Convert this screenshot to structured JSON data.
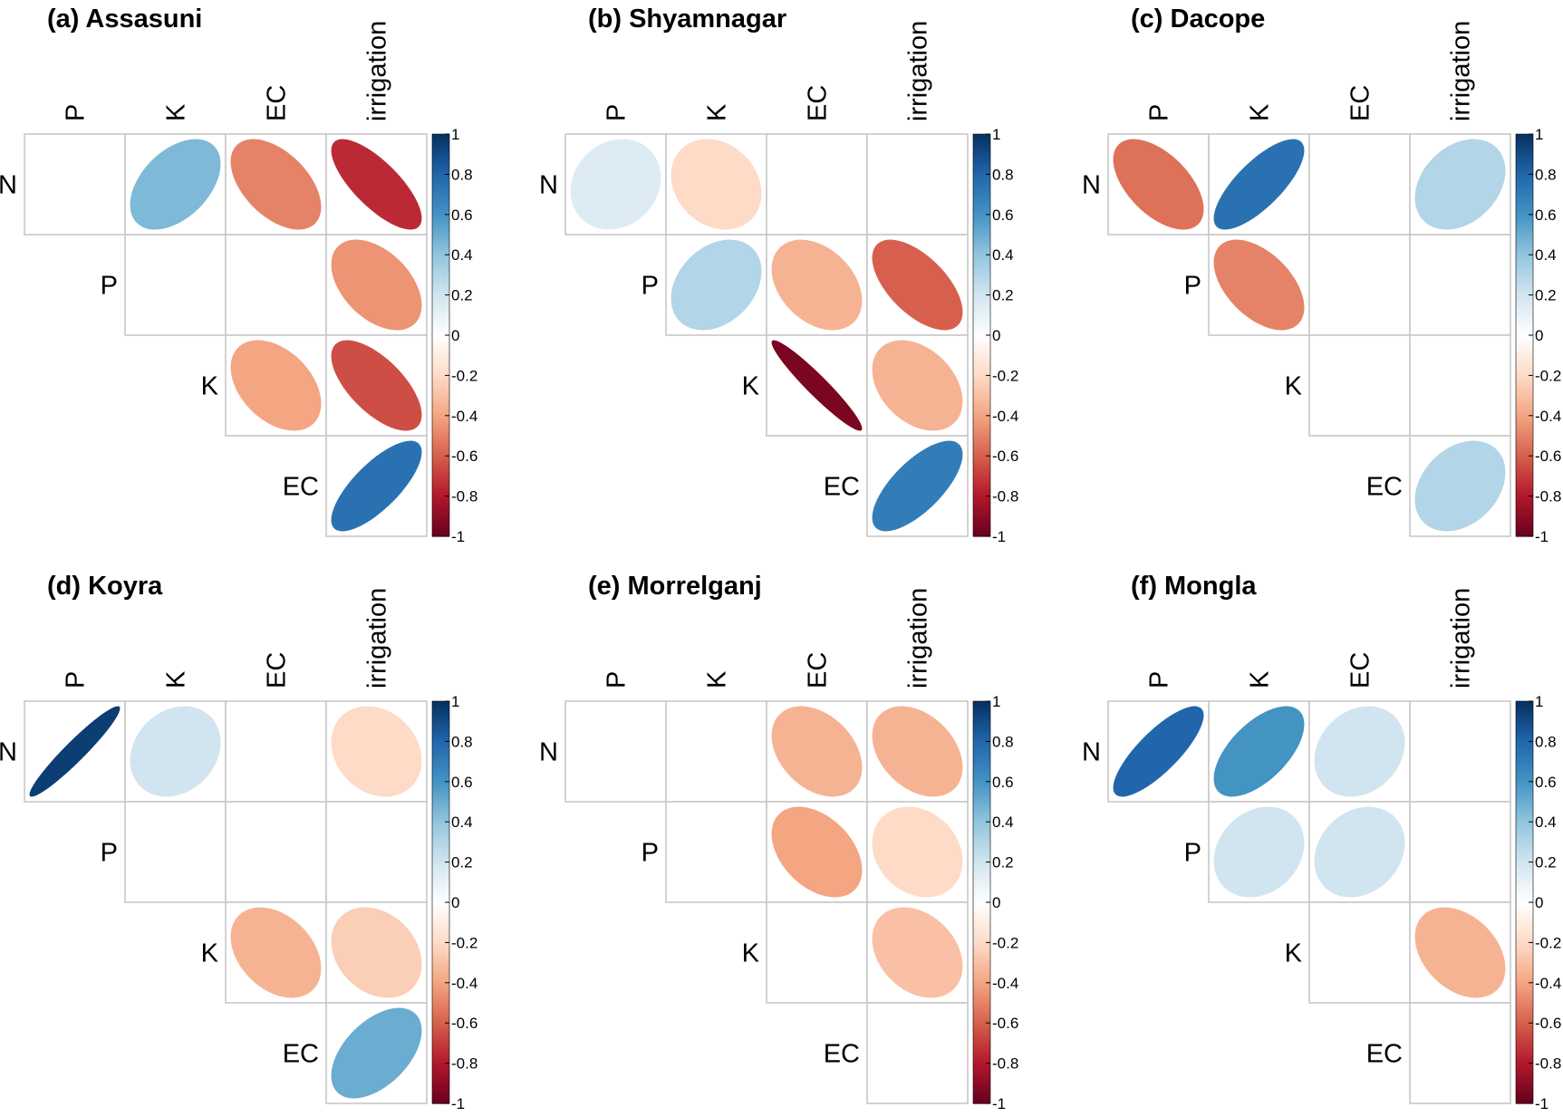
{
  "chart_data": [
    {
      "type": "heatmap",
      "title": "(a) Assasuni",
      "rows": [
        "N",
        "P",
        "K",
        "EC"
      ],
      "columns": [
        "P",
        "K",
        "EC",
        "irrigation"
      ],
      "cells": [
        {
          "row": "N",
          "col": "P",
          "value": null
        },
        {
          "row": "N",
          "col": "K",
          "value": 0.45
        },
        {
          "row": "N",
          "col": "EC",
          "value": -0.5
        },
        {
          "row": "N",
          "col": "irrigation",
          "value": -0.75
        },
        {
          "row": "P",
          "col": "K",
          "value": null
        },
        {
          "row": "P",
          "col": "EC",
          "value": null
        },
        {
          "row": "P",
          "col": "irrigation",
          "value": -0.45
        },
        {
          "row": "K",
          "col": "EC",
          "value": -0.4
        },
        {
          "row": "K",
          "col": "irrigation",
          "value": -0.65
        },
        {
          "row": "EC",
          "col": "irrigation",
          "value": 0.75
        }
      ],
      "colorbar_ticks": [
        "1",
        "0.8",
        "0.6",
        "0.4",
        "0.2",
        "0",
        "-0.2",
        "-0.4",
        "-0.6",
        "-0.8",
        "-1"
      ],
      "colorbar_range": [
        -1,
        1
      ]
    },
    {
      "type": "heatmap",
      "title": "(b) Shyamnagar",
      "rows": [
        "N",
        "P",
        "K",
        "EC"
      ],
      "columns": [
        "P",
        "K",
        "EC",
        "irrigation"
      ],
      "cells": [
        {
          "row": "N",
          "col": "P",
          "value": 0.15
        },
        {
          "row": "N",
          "col": "K",
          "value": -0.2
        },
        {
          "row": "N",
          "col": "EC",
          "value": null
        },
        {
          "row": "N",
          "col": "irrigation",
          "value": null
        },
        {
          "row": "P",
          "col": "K",
          "value": 0.3
        },
        {
          "row": "P",
          "col": "EC",
          "value": -0.35
        },
        {
          "row": "P",
          "col": "irrigation",
          "value": -0.6
        },
        {
          "row": "K",
          "col": "EC",
          "value": -0.95
        },
        {
          "row": "K",
          "col": "irrigation",
          "value": -0.35
        },
        {
          "row": "EC",
          "col": "irrigation",
          "value": 0.7
        }
      ],
      "colorbar_ticks": [
        "1",
        "0.8",
        "0.6",
        "0.4",
        "0.2",
        "0",
        "-0.2",
        "-0.4",
        "-0.6",
        "-0.8",
        "-1"
      ],
      "colorbar_range": [
        -1,
        1
      ]
    },
    {
      "type": "heatmap",
      "title": "(c) Dacope",
      "rows": [
        "N",
        "P",
        "K",
        "EC"
      ],
      "columns": [
        "P",
        "K",
        "EC",
        "irrigation"
      ],
      "cells": [
        {
          "row": "N",
          "col": "P",
          "value": -0.55
        },
        {
          "row": "N",
          "col": "K",
          "value": 0.75
        },
        {
          "row": "N",
          "col": "EC",
          "value": null
        },
        {
          "row": "N",
          "col": "irrigation",
          "value": 0.3
        },
        {
          "row": "P",
          "col": "K",
          "value": -0.5
        },
        {
          "row": "P",
          "col": "EC",
          "value": null
        },
        {
          "row": "P",
          "col": "irrigation",
          "value": null
        },
        {
          "row": "K",
          "col": "EC",
          "value": null
        },
        {
          "row": "K",
          "col": "irrigation",
          "value": null
        },
        {
          "row": "EC",
          "col": "irrigation",
          "value": 0.3
        }
      ],
      "colorbar_ticks": [
        "1",
        "0.8",
        "0.6",
        "0.4",
        "0.2",
        "0",
        "-0.2",
        "-0.4",
        "-0.6",
        "-0.8",
        "-1"
      ],
      "colorbar_range": [
        -1,
        1
      ]
    },
    {
      "type": "heatmap",
      "title": "(d) Koyra",
      "rows": [
        "N",
        "P",
        "K",
        "EC"
      ],
      "columns": [
        "P",
        "K",
        "EC",
        "irrigation"
      ],
      "cells": [
        {
          "row": "N",
          "col": "P",
          "value": 0.95
        },
        {
          "row": "N",
          "col": "K",
          "value": 0.2
        },
        {
          "row": "N",
          "col": "EC",
          "value": null
        },
        {
          "row": "N",
          "col": "irrigation",
          "value": -0.2
        },
        {
          "row": "P",
          "col": "K",
          "value": null
        },
        {
          "row": "P",
          "col": "EC",
          "value": null
        },
        {
          "row": "P",
          "col": "irrigation",
          "value": null
        },
        {
          "row": "K",
          "col": "EC",
          "value": -0.35
        },
        {
          "row": "K",
          "col": "irrigation",
          "value": -0.25
        },
        {
          "row": "EC",
          "col": "irrigation",
          "value": 0.5
        }
      ],
      "colorbar_ticks": [
        "1",
        "0.8",
        "0.6",
        "0.4",
        "0.2",
        "0",
        "-0.2",
        "-0.4",
        "-0.6",
        "-0.8",
        "-1"
      ],
      "colorbar_range": [
        -1,
        1
      ]
    },
    {
      "type": "heatmap",
      "title": "(e) Morrelganj",
      "rows": [
        "N",
        "P",
        "K",
        "EC"
      ],
      "columns": [
        "P",
        "K",
        "EC",
        "irrigation"
      ],
      "cells": [
        {
          "row": "N",
          "col": "P",
          "value": null
        },
        {
          "row": "N",
          "col": "K",
          "value": null
        },
        {
          "row": "N",
          "col": "EC",
          "value": -0.35
        },
        {
          "row": "N",
          "col": "irrigation",
          "value": -0.35
        },
        {
          "row": "P",
          "col": "K",
          "value": null
        },
        {
          "row": "P",
          "col": "EC",
          "value": -0.4
        },
        {
          "row": "P",
          "col": "irrigation",
          "value": -0.2
        },
        {
          "row": "K",
          "col": "EC",
          "value": null
        },
        {
          "row": "K",
          "col": "irrigation",
          "value": -0.3
        },
        {
          "row": "EC",
          "col": "irrigation",
          "value": null
        }
      ],
      "colorbar_ticks": [
        "1",
        "0.8",
        "0.6",
        "0.4",
        "0.2",
        "0",
        "-0.2",
        "-0.4",
        "-0.6",
        "-0.8",
        "-1"
      ],
      "colorbar_range": [
        -1,
        1
      ]
    },
    {
      "type": "heatmap",
      "title": "(f) Mongla",
      "rows": [
        "N",
        "P",
        "K",
        "EC"
      ],
      "columns": [
        "P",
        "K",
        "EC",
        "irrigation"
      ],
      "cells": [
        {
          "row": "N",
          "col": "P",
          "value": 0.8
        },
        {
          "row": "N",
          "col": "K",
          "value": 0.6
        },
        {
          "row": "N",
          "col": "EC",
          "value": 0.2
        },
        {
          "row": "N",
          "col": "irrigation",
          "value": null
        },
        {
          "row": "P",
          "col": "K",
          "value": 0.2
        },
        {
          "row": "P",
          "col": "EC",
          "value": 0.2
        },
        {
          "row": "P",
          "col": "irrigation",
          "value": null
        },
        {
          "row": "K",
          "col": "EC",
          "value": null
        },
        {
          "row": "K",
          "col": "irrigation",
          "value": -0.35
        },
        {
          "row": "EC",
          "col": "irrigation",
          "value": null
        }
      ],
      "colorbar_ticks": [
        "1",
        "0.8",
        "0.6",
        "0.4",
        "0.2",
        "0",
        "-0.2",
        "-0.4",
        "-0.6",
        "-0.8",
        "-1"
      ],
      "colorbar_range": [
        -1,
        1
      ]
    }
  ]
}
